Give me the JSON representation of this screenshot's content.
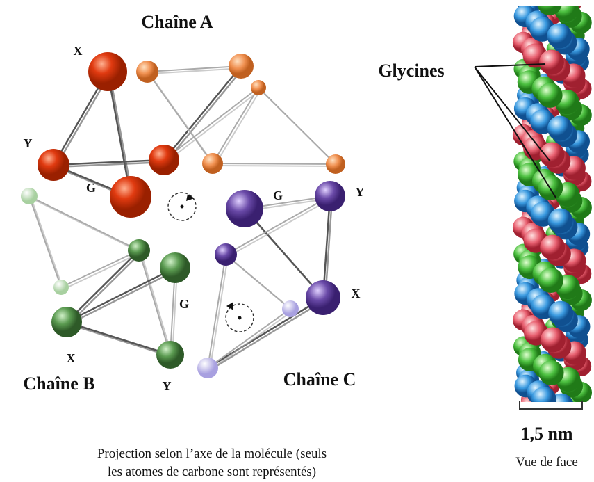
{
  "chains": [
    {
      "name": "Chaîne A",
      "labels": [
        "X",
        "Y",
        "G"
      ]
    },
    {
      "name": "Chaîne B",
      "labels": [
        "G",
        "X",
        "Y"
      ]
    },
    {
      "name": "Chaîne C",
      "labels": [
        "G",
        "Y",
        "X"
      ]
    }
  ],
  "glycines": "Glycines",
  "scale": "1,5 nm",
  "side_view": "Vue de face",
  "caption": [
    "Projection selon l’axe de la molécule (seuls",
    "les atomes de carbone sont représentés)"
  ]
}
